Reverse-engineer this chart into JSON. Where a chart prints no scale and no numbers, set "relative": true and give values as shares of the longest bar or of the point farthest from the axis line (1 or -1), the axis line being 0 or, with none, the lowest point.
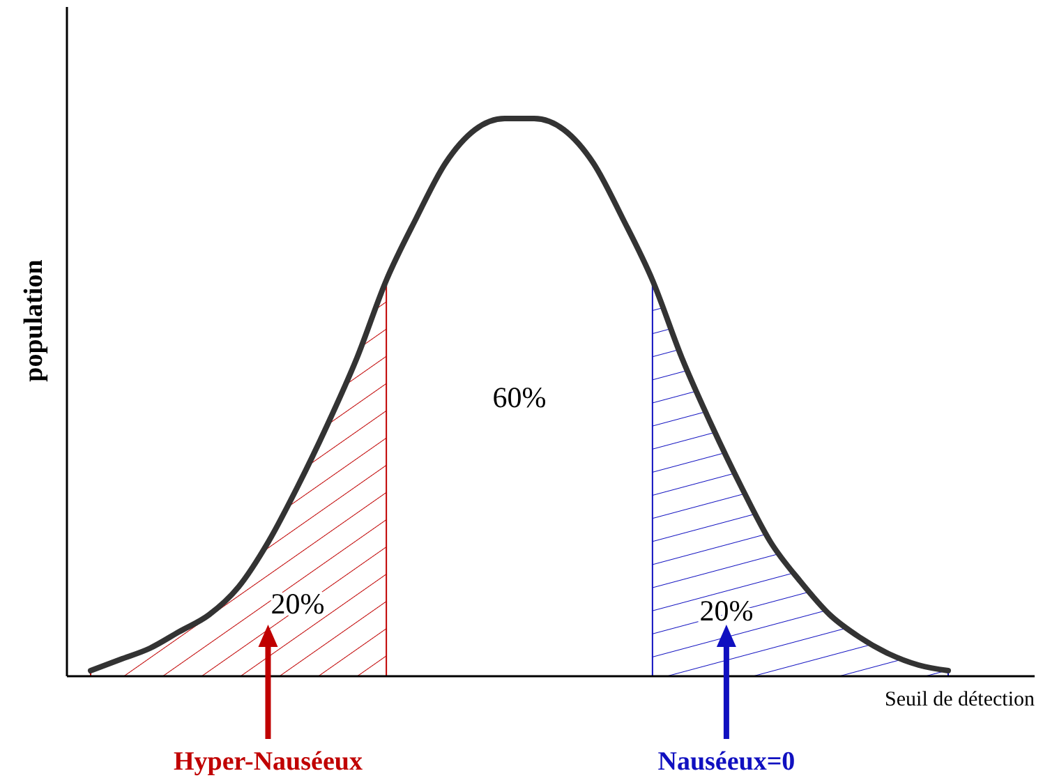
{
  "chart_data": {
    "type": "area",
    "relative": true,
    "xlabel": "Seuil de détection",
    "ylabel": "population",
    "categories": [
      null,
      null,
      null,
      null,
      null,
      null,
      null,
      null,
      null,
      null,
      null,
      null,
      null,
      null,
      null,
      null,
      null,
      null,
      null,
      null,
      null,
      null,
      null,
      null,
      null,
      null,
      null,
      null,
      null,
      null
    ],
    "series": [
      {
        "type": "line",
        "color": "#333333",
        "values": [
          0.01,
          0.03,
          0.05,
          0.08,
          0.11,
          0.16,
          0.24,
          0.34,
          0.45,
          0.57,
          0.71,
          0.82,
          0.92,
          0.98,
          1.0,
          1.0,
          0.98,
          0.92,
          0.82,
          0.71,
          0.57,
          0.45,
          0.34,
          0.24,
          0.17,
          0.11,
          0.07,
          0.04,
          0.02,
          0.01
        ]
      },
      {
        "color": "#c00000",
        "values": [
          0.01,
          0.03,
          0.05,
          0.08,
          0.11,
          0.16,
          0.24,
          0.34,
          0.45,
          0.57,
          0.71,
          null,
          null,
          null,
          null,
          null,
          null,
          null,
          null,
          null,
          null,
          null,
          null,
          null,
          null,
          null,
          null,
          null,
          null,
          null
        ]
      },
      {
        "color": "#1010c0",
        "values": [
          null,
          null,
          null,
          null,
          null,
          null,
          null,
          null,
          null,
          null,
          null,
          null,
          null,
          null,
          null,
          null,
          null,
          null,
          null,
          0.71,
          0.57,
          0.45,
          0.34,
          0.24,
          0.17,
          0.11,
          0.07,
          0.04,
          0.02,
          0.01
        ]
      }
    ],
    "annotations": [
      "20%",
      "60%",
      "20%",
      "Hyper-Nauséeux",
      "Nauséeux=0"
    ]
  }
}
